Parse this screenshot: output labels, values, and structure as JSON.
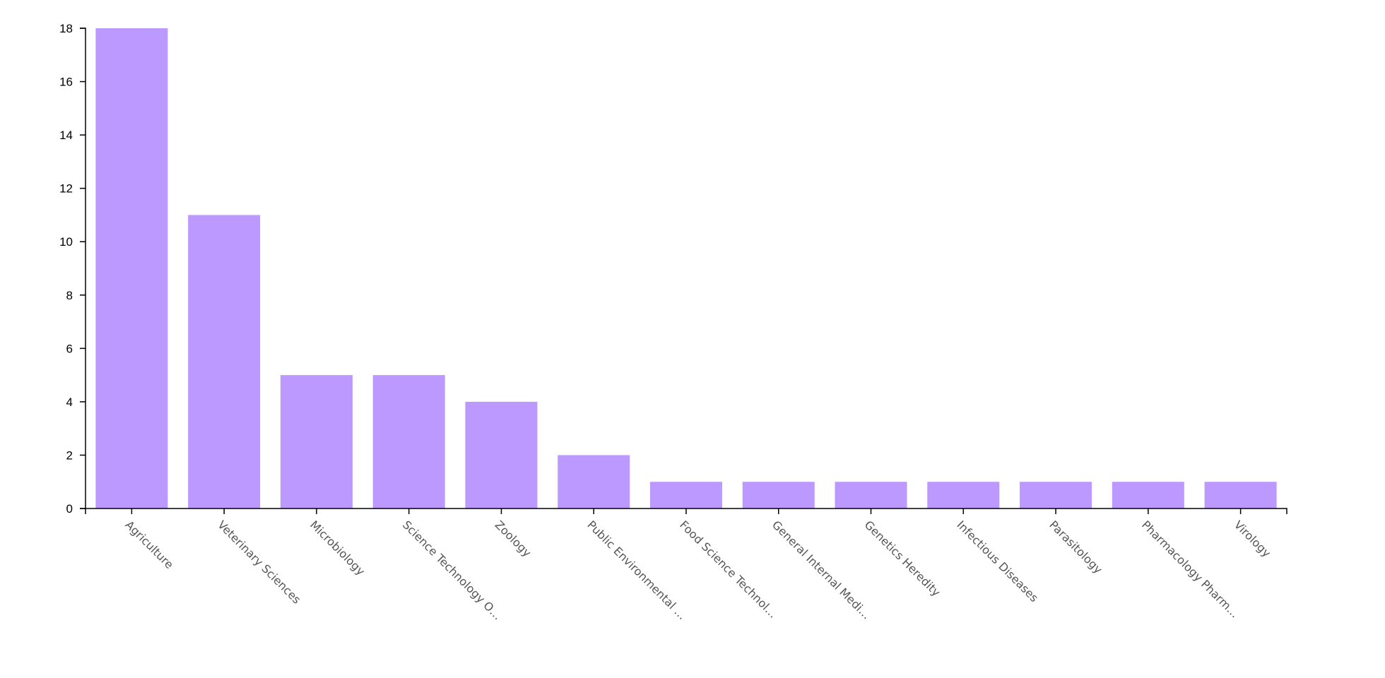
{
  "chart_data": {
    "type": "bar",
    "categories": [
      "Agriculture",
      "Veterinary Sciences",
      "Microbiology",
      "Science Technology O…",
      "Zoology",
      "Public Environmental …",
      "Food Science Technol…",
      "General Internal Medi…",
      "Genetics Heredity",
      "Infectious Diseases",
      "Parasitology",
      "Pharmacology Pharm…",
      "Virology"
    ],
    "values": [
      18,
      11,
      5,
      5,
      4,
      2,
      1,
      1,
      1,
      1,
      1,
      1,
      1
    ],
    "color": "#bb99ff",
    "ylim": [
      0,
      18
    ],
    "yticks": [
      0,
      2,
      4,
      6,
      8,
      10,
      12,
      14,
      16,
      18
    ],
    "grid": false
  }
}
